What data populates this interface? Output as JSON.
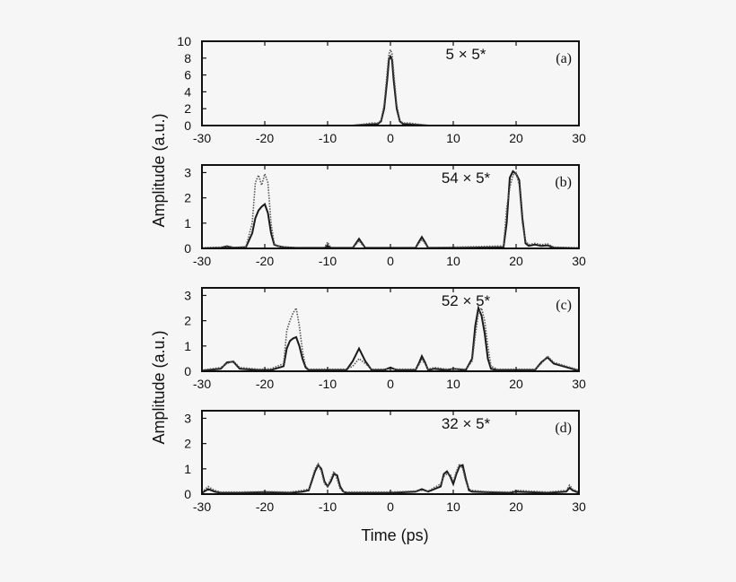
{
  "figure": {
    "ylabel": "Amplitude (a.u.)",
    "xlabel": "Time (ps)",
    "colors": {
      "background": "#f6f6f6",
      "axes": "#111111",
      "solid_series": "#1a1a1a",
      "dotted_series": "#555555"
    }
  },
  "chart_data": [
    {
      "type": "line",
      "panel": "a",
      "title": "5 × 5*",
      "tag": "(a)",
      "xlim": [
        -30,
        30
      ],
      "ylim": [
        0,
        10
      ],
      "xticks": [
        -30,
        -20,
        -10,
        0,
        10,
        20,
        30
      ],
      "yticks": [
        0,
        2,
        4,
        6,
        8,
        10
      ],
      "legend": "none",
      "grid": false,
      "series": [
        {
          "style": "dashed-baseline",
          "x": [
            -30,
            30
          ],
          "y": [
            0,
            0
          ]
        },
        {
          "style": "solid",
          "x": [
            -30,
            -6,
            -5,
            -4,
            -3,
            -2,
            -1.5,
            -1,
            -0.5,
            -0.25,
            0,
            0.25,
            0.5,
            1,
            1.5,
            2,
            3,
            4,
            5,
            6,
            30
          ],
          "y": [
            0,
            0,
            0.05,
            0.1,
            0.15,
            0.2,
            0.5,
            2.0,
            5.5,
            7.8,
            8.2,
            7.8,
            5.5,
            2.0,
            0.5,
            0.2,
            0.15,
            0.1,
            0.05,
            0,
            0
          ]
        },
        {
          "style": "dotted",
          "x": [
            -30,
            -6,
            -5,
            -4,
            -3,
            -2,
            -1.5,
            -1,
            -0.5,
            -0.25,
            0,
            0.25,
            0.5,
            1,
            1.5,
            2,
            3,
            4,
            5,
            6,
            30
          ],
          "y": [
            0,
            0,
            0.1,
            0.2,
            0.3,
            0.3,
            0.6,
            2.5,
            6.5,
            8.5,
            9.0,
            8.5,
            6.5,
            2.5,
            0.6,
            0.3,
            0.3,
            0.2,
            0.1,
            0,
            0
          ]
        }
      ]
    },
    {
      "type": "line",
      "panel": "b",
      "title": "54 × 5*",
      "tag": "(b)",
      "xlim": [
        -30,
        30
      ],
      "ylim": [
        0,
        3.3
      ],
      "xticks": [
        -30,
        -20,
        -10,
        0,
        10,
        20,
        30
      ],
      "yticks": [
        0,
        1,
        2,
        3
      ],
      "legend": "none",
      "grid": false,
      "series": [
        {
          "style": "solid",
          "x": [
            -30,
            -27,
            -26,
            -25,
            -23,
            -22,
            -21.5,
            -21,
            -20.5,
            -20,
            -19.5,
            -19,
            -18.5,
            -18,
            -17,
            -15,
            -10.5,
            -10,
            -9.5,
            -6,
            -5.5,
            -5,
            -4.5,
            -4,
            4,
            4.5,
            5,
            5.5,
            6,
            10,
            18,
            18.5,
            19,
            19.5,
            20,
            20.5,
            21,
            21.5,
            22,
            23,
            24,
            25,
            26,
            30
          ],
          "y": [
            0,
            0.02,
            0.08,
            0.03,
            0.05,
            0.6,
            1.2,
            1.5,
            1.65,
            1.75,
            1.4,
            0.6,
            0.15,
            0.1,
            0.05,
            0.02,
            0.02,
            0.1,
            0.02,
            0.02,
            0.2,
            0.38,
            0.2,
            0.02,
            0.02,
            0.25,
            0.45,
            0.25,
            0.02,
            0.02,
            0.05,
            1.0,
            2.8,
            3.05,
            2.95,
            2.7,
            1.2,
            0.2,
            0.1,
            0.15,
            0.1,
            0.12,
            0.03,
            0
          ]
        },
        {
          "style": "dotted",
          "x": [
            -30,
            -27,
            -26,
            -25,
            -23,
            -22,
            -21.5,
            -21,
            -20.5,
            -20,
            -19.5,
            -19,
            -18.5,
            -18,
            -17,
            -15,
            -10.5,
            -10,
            -9.5,
            -6,
            -5.5,
            -5,
            -4.5,
            -4,
            4,
            4.5,
            5,
            5.5,
            6,
            10,
            18,
            18.5,
            19,
            19.5,
            20,
            20.5,
            21,
            21.5,
            22,
            23,
            24,
            25,
            26,
            30
          ],
          "y": [
            0.03,
            0.05,
            0.1,
            0.04,
            0.06,
            1.0,
            2.6,
            2.9,
            2.5,
            2.95,
            2.6,
            1.0,
            0.2,
            0.1,
            0.05,
            0.03,
            0.03,
            0.25,
            0.03,
            0.03,
            0.15,
            0.3,
            0.15,
            0.03,
            0.03,
            0.2,
            0.35,
            0.2,
            0.03,
            0.05,
            0.1,
            1.6,
            2.4,
            2.9,
            3.0,
            2.5,
            1.0,
            0.3,
            0.15,
            0.2,
            0.15,
            0.18,
            0.05,
            0.03
          ]
        }
      ]
    },
    {
      "type": "line",
      "panel": "c",
      "title": "52 × 5*",
      "tag": "(c)",
      "xlim": [
        -30,
        30
      ],
      "ylim": [
        0,
        3.3
      ],
      "xticks": [
        -30,
        -20,
        -10,
        0,
        10,
        20,
        30
      ],
      "yticks": [
        0,
        1,
        2,
        3
      ],
      "legend": "none",
      "grid": false,
      "series": [
        {
          "style": "solid",
          "x": [
            -30,
            -27,
            -26,
            -25,
            -24,
            -21,
            -19,
            -17,
            -16.5,
            -16,
            -15.5,
            -15,
            -14.5,
            -14,
            -13.5,
            -13,
            -11,
            -7,
            -6,
            -5,
            -4,
            -3,
            -1,
            0,
            1,
            4,
            4.5,
            5,
            5.5,
            6,
            7,
            9,
            10,
            12,
            13,
            13.5,
            14,
            14.5,
            15,
            15.5,
            16,
            17,
            23,
            24,
            25,
            26,
            30
          ],
          "y": [
            0.02,
            0.1,
            0.35,
            0.38,
            0.1,
            0.05,
            0.05,
            0.2,
            0.9,
            1.2,
            1.3,
            1.35,
            1.0,
            0.5,
            0.15,
            0.05,
            0.05,
            0.05,
            0.4,
            0.9,
            0.4,
            0.05,
            0.05,
            0.15,
            0.05,
            0.05,
            0.3,
            0.6,
            0.35,
            0.05,
            0.1,
            0.05,
            0.1,
            0.05,
            0.5,
            1.8,
            2.5,
            2.2,
            1.5,
            0.5,
            0.1,
            0.05,
            0.05,
            0.35,
            0.55,
            0.3,
            0.02
          ]
        },
        {
          "style": "dotted",
          "x": [
            -30,
            -27,
            -26,
            -25,
            -24,
            -21,
            -19,
            -17,
            -16.5,
            -16,
            -15.5,
            -15,
            -14.5,
            -14,
            -13.5,
            -13,
            -11,
            -7,
            -6,
            -5,
            -4,
            -3,
            -1,
            0,
            1,
            4,
            4.5,
            5,
            5.5,
            6,
            7,
            9,
            10,
            12,
            13,
            13.5,
            14,
            14.5,
            15,
            15.5,
            16,
            17,
            23,
            24,
            25,
            26,
            30
          ],
          "y": [
            0.05,
            0.15,
            0.3,
            0.4,
            0.15,
            0.08,
            0.1,
            0.3,
            1.6,
            2.0,
            2.3,
            2.5,
            1.8,
            0.8,
            0.2,
            0.08,
            0.08,
            0.08,
            0.2,
            0.5,
            0.3,
            0.08,
            0.08,
            0.1,
            0.08,
            0.08,
            0.25,
            0.45,
            0.3,
            0.08,
            0.15,
            0.08,
            0.1,
            0.08,
            0.4,
            1.4,
            2.3,
            2.5,
            2.0,
            1.0,
            0.2,
            0.08,
            0.08,
            0.3,
            0.6,
            0.35,
            0.05
          ]
        }
      ]
    },
    {
      "type": "line",
      "panel": "d",
      "title": "32 × 5*",
      "tag": "(d)",
      "xlim": [
        -30,
        30
      ],
      "ylim": [
        0,
        3.3
      ],
      "xticks": [
        -30,
        -20,
        -10,
        0,
        10,
        20,
        30
      ],
      "yticks": [
        0,
        1,
        2,
        3
      ],
      "legend": "none",
      "grid": false,
      "series": [
        {
          "style": "solid",
          "x": [
            -30,
            -29,
            -28,
            -27,
            -24,
            -20,
            -16,
            -14,
            -13,
            -12,
            -11.5,
            -11,
            -10.5,
            -10,
            -9.5,
            -9,
            -8.5,
            -8,
            -7.5,
            -7,
            -4,
            0,
            4,
            5,
            6,
            8,
            8.5,
            9,
            9.5,
            10,
            10.5,
            11,
            11.5,
            12,
            12.5,
            13,
            15,
            19,
            20,
            25,
            28,
            28.5,
            29,
            30
          ],
          "y": [
            0.05,
            0.2,
            0.1,
            0.05,
            0.05,
            0.08,
            0.05,
            0.1,
            0.15,
            0.9,
            1.15,
            1.0,
            0.5,
            0.3,
            0.5,
            0.8,
            0.75,
            0.3,
            0.1,
            0.05,
            0.05,
            0.05,
            0.1,
            0.2,
            0.1,
            0.3,
            0.8,
            0.9,
            0.7,
            0.4,
            0.8,
            1.1,
            1.15,
            0.6,
            0.15,
            0.1,
            0.08,
            0.05,
            0.1,
            0.05,
            0.1,
            0.25,
            0.15,
            0.05
          ]
        },
        {
          "style": "dotted",
          "x": [
            -30,
            -29,
            -28,
            -27,
            -24,
            -20,
            -16,
            -14,
            -13,
            -12,
            -11.5,
            -11,
            -10.5,
            -10,
            -9.5,
            -9,
            -8.5,
            -8,
            -7.5,
            -7,
            -4,
            0,
            4,
            5,
            6,
            8,
            8.5,
            9,
            9.5,
            10,
            10.5,
            11,
            11.5,
            12,
            12.5,
            13,
            15,
            19,
            20,
            25,
            28,
            28.5,
            29,
            30
          ],
          "y": [
            0.08,
            0.3,
            0.15,
            0.08,
            0.08,
            0.1,
            0.08,
            0.15,
            0.2,
            1.0,
            1.2,
            0.9,
            0.4,
            0.3,
            0.6,
            0.9,
            0.6,
            0.2,
            0.1,
            0.08,
            0.08,
            0.08,
            0.12,
            0.15,
            0.12,
            0.4,
            0.7,
            0.8,
            0.8,
            0.5,
            0.9,
            1.2,
            1.0,
            0.5,
            0.2,
            0.15,
            0.1,
            0.08,
            0.15,
            0.08,
            0.15,
            0.35,
            0.2,
            0.08
          ]
        }
      ]
    }
  ]
}
